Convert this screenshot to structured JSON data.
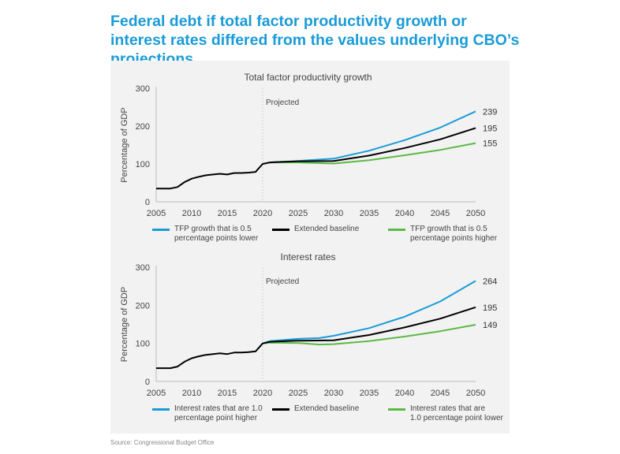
{
  "title": "Federal debt if total factor productivity growth or interest rates differed from the values underlying CBO’s projections",
  "source": "Source: Congressional Budget Office",
  "colors": {
    "high": "#1a9bd7",
    "baseline": "#000000",
    "low": "#5cb946"
  },
  "chart_data": [
    {
      "type": "line",
      "title": "Total factor productivity growth",
      "ylabel": "Percentage of GDP",
      "ylim": [
        0,
        300
      ],
      "yticks": [
        "0",
        "100",
        "200",
        "300"
      ],
      "xlim": [
        2005,
        2050
      ],
      "xticks": [
        "2005",
        "2010",
        "2015",
        "2020",
        "2025",
        "2030",
        "2035",
        "2040",
        "2045",
        "2050"
      ],
      "annotation": "Projected",
      "projection_start": 2020,
      "grid": false,
      "legend_position": "bottom",
      "series": [
        {
          "name": "TFP growth that is 0.5 percentage points lower",
          "color": "#1a9bd7",
          "end_label": "239",
          "x": [
            2021,
            2025,
            2030,
            2035,
            2040,
            2045,
            2050
          ],
          "y": [
            104,
            108,
            114,
            135,
            163,
            196,
            239
          ]
        },
        {
          "name": "Extended baseline",
          "color": "#000000",
          "end_label": "195",
          "x": [
            2005,
            2006,
            2007,
            2008,
            2009,
            2010,
            2011,
            2012,
            2013,
            2014,
            2015,
            2016,
            2017,
            2018,
            2019,
            2020,
            2021,
            2022,
            2025,
            2030,
            2035,
            2040,
            2045,
            2050
          ],
          "y": [
            35,
            35,
            35,
            39,
            52,
            61,
            66,
            70,
            72,
            74,
            72,
            76,
            76,
            77,
            79,
            100,
            104,
            105,
            107,
            108,
            122,
            142,
            165,
            195
          ]
        },
        {
          "name": "TFP growth that is 0.5 percentage points higher",
          "color": "#5cb946",
          "end_label": "155",
          "x": [
            2021,
            2025,
            2030,
            2035,
            2040,
            2045,
            2050
          ],
          "y": [
            104,
            104,
            101,
            110,
            123,
            137,
            155
          ]
        }
      ]
    },
    {
      "type": "line",
      "title": "Interest rates",
      "ylabel": "Percentage of GDP",
      "ylim": [
        0,
        300
      ],
      "yticks": [
        "0",
        "100",
        "200",
        "300"
      ],
      "xlim": [
        2005,
        2050
      ],
      "xticks": [
        "2005",
        "2010",
        "2015",
        "2020",
        "2025",
        "2030",
        "2035",
        "2040",
        "2045",
        "2050"
      ],
      "annotation": "Projected",
      "projection_start": 2020,
      "grid": false,
      "legend_position": "bottom",
      "series": [
        {
          "name": "Interest rates that are 1.0 percentage point higher",
          "color": "#1a9bd7",
          "end_label": "264",
          "x": [
            2020,
            2021,
            2025,
            2028,
            2030,
            2035,
            2040,
            2045,
            2050
          ],
          "y": [
            100,
            106,
            112,
            114,
            120,
            140,
            170,
            210,
            264
          ]
        },
        {
          "name": "Extended baseline",
          "color": "#000000",
          "end_label": "195",
          "x": [
            2005,
            2006,
            2007,
            2008,
            2009,
            2010,
            2011,
            2012,
            2013,
            2014,
            2015,
            2016,
            2017,
            2018,
            2019,
            2020,
            2021,
            2022,
            2025,
            2030,
            2035,
            2040,
            2045,
            2050
          ],
          "y": [
            35,
            35,
            35,
            39,
            52,
            61,
            66,
            70,
            72,
            74,
            72,
            76,
            76,
            77,
            79,
            100,
            104,
            105,
            107,
            108,
            122,
            142,
            165,
            195
          ]
        },
        {
          "name": "Interest rates that are 1.0 percentage point lower",
          "color": "#5cb946",
          "end_label": "149",
          "x": [
            2020,
            2021,
            2025,
            2028,
            2030,
            2035,
            2040,
            2045,
            2050
          ],
          "y": [
            100,
            102,
            101,
            97,
            98,
            106,
            118,
            132,
            149
          ]
        }
      ]
    }
  ],
  "legends": [
    [
      "TFP growth that is 0.5\npercentage points lower",
      "Extended baseline",
      "TFP growth that is 0.5\npercentage points higher"
    ],
    [
      "Interest rates that are 1.0\npercentage point higher",
      "Extended baseline",
      "Interest rates that are\n1.0 percentage point lower"
    ]
  ]
}
